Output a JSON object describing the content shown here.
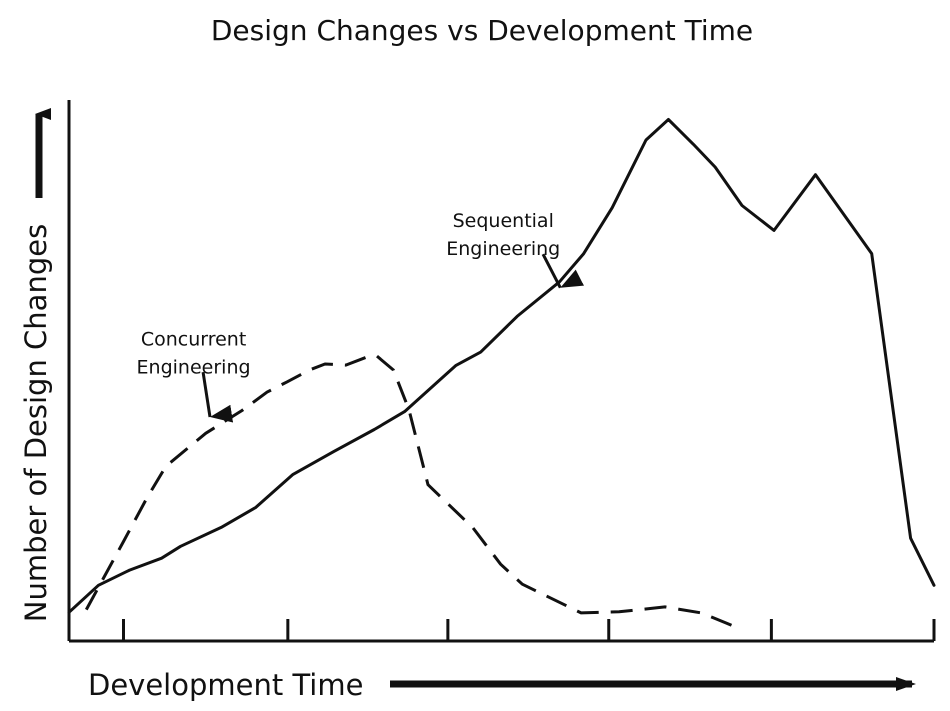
{
  "chart_data": {
    "type": "line",
    "title": "Design Changes vs Development Time",
    "xlabel": "Development Time",
    "ylabel": "Number of Design Changes",
    "xlim": [
      0,
      100
    ],
    "ylim": [
      0,
      100
    ],
    "x_ticks": [
      6.3,
      25.3,
      43.8,
      62.4,
      81.2,
      100
    ],
    "grid": false,
    "legend": "none",
    "colors": {
      "line": "#111111",
      "background": "#ffffff"
    },
    "series": [
      {
        "key": "sequential",
        "style": "solid",
        "x": [
          0,
          3.4,
          7.0,
          10.7,
          12.9,
          17.6,
          21.6,
          25.9,
          30.6,
          35.3,
          38.8,
          44.7,
          47.6,
          51.8,
          56.7,
          59.5,
          62.8,
          66.7,
          69.3,
          72.2,
          74.7,
          77.8,
          81.5,
          86.3,
          92.8,
          97.3,
          100
        ],
        "y": [
          5.3,
          10.3,
          13.1,
          15.3,
          17.5,
          21.0,
          24.7,
          30.8,
          35.0,
          39.1,
          42.4,
          50.9,
          53.4,
          60.0,
          66.4,
          71.6,
          80.1,
          92.6,
          96.4,
          91.8,
          87.6,
          80.5,
          75.9,
          86.2,
          71.6,
          19.0,
          10.3
        ]
      },
      {
        "key": "concurrent",
        "style": "dashed",
        "x": [
          2.0,
          6.3,
          9.0,
          11.2,
          15.8,
          20.0,
          22.9,
          25.2,
          27.8,
          29.6,
          32.0,
          34.3,
          35.5,
          37.5,
          39.3,
          41.5,
          46.7,
          49.9,
          52.4,
          59.2,
          63.6,
          68.9,
          73.1,
          76.0,
          77.6
        ],
        "y": [
          5.8,
          18.4,
          26.4,
          32.3,
          38.4,
          42.6,
          46.0,
          47.9,
          50.1,
          51.2,
          51.0,
          52.4,
          52.8,
          50.1,
          42.8,
          28.9,
          20.9,
          14.2,
          10.5,
          5.2,
          5.4,
          6.3,
          5.2,
          3.3,
          2.2
        ]
      }
    ],
    "annotations": [
      {
        "series": "sequential",
        "lines": [
          "Sequential",
          "Engineering"
        ],
        "text_at": [
          50.2,
          76.5
        ],
        "arrow_tail": [
          54.8,
          71.5
        ],
        "arrow_head": [
          56.8,
          65.3
        ]
      },
      {
        "series": "concurrent",
        "lines": [
          "Concurrent",
          "Engineering"
        ],
        "text_at": [
          14.4,
          54.6
        ],
        "arrow_tail": [
          15.5,
          49.7
        ],
        "arrow_head": [
          16.3,
          41.4
        ]
      }
    ]
  }
}
